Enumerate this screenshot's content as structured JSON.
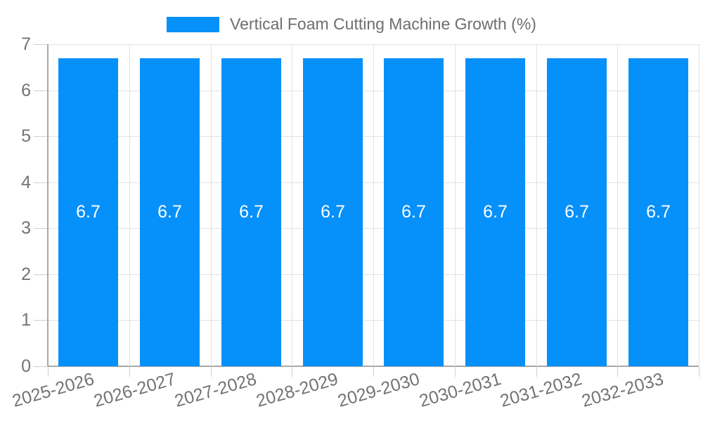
{
  "colors": {
    "bar": "#0690fa",
    "grid": "#e2e2e2",
    "axis": "#a8a8a8",
    "tick": "#cfcfcf",
    "tick_text": "#737373",
    "bar_label_text": "#ffffff"
  },
  "chart_data": {
    "type": "bar",
    "title": "Vertical Foam Cutting Machine Growth (%)",
    "categories": [
      "2025-2026",
      "2026-2027",
      "2027-2028",
      "2028-2029",
      "2029-2030",
      "2030-2031",
      "2031-2032",
      "2032-2033"
    ],
    "series": [
      {
        "name": "Vertical Foam Cutting Machine Growth (%)",
        "values": [
          6.7,
          6.7,
          6.7,
          6.7,
          6.7,
          6.7,
          6.7,
          6.7
        ]
      }
    ],
    "value_labels": [
      "6.7",
      "6.7",
      "6.7",
      "6.7",
      "6.7",
      "6.7",
      "6.7",
      "6.7"
    ],
    "xlabel": "",
    "ylabel": "",
    "ylim": [
      0,
      7
    ],
    "yticks": [
      0,
      1,
      2,
      3,
      4,
      5,
      6,
      7
    ],
    "grid": true,
    "legend_position": "top",
    "bar_labels_inside": true
  }
}
